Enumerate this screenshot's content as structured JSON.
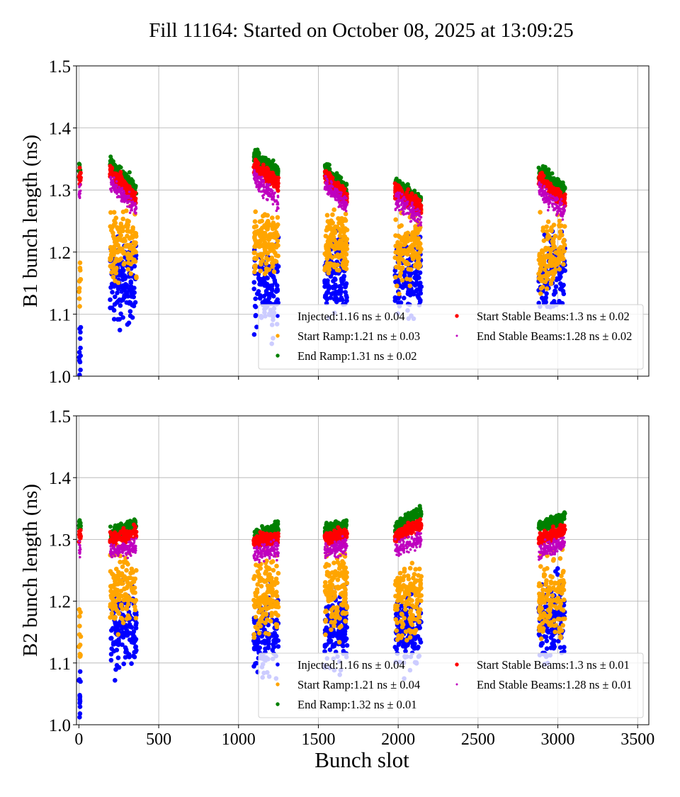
{
  "chart_data": [
    {
      "type": "scatter",
      "title": "Fill 11164: Started on October 08, 2025 at 13:09:25",
      "ylabel": "B1 bunch length (ns)",
      "xlabel": "",
      "xlim": [
        -15,
        3570
      ],
      "ylim": [
        1.0,
        1.5
      ],
      "xticks": [
        0,
        500,
        1000,
        1500,
        2000,
        2500,
        3000,
        3500
      ],
      "yticks": [
        "1.0",
        "1.1",
        "1.2",
        "1.3",
        "1.4",
        "1.5"
      ],
      "grid": true,
      "legend_placement": "lower-right",
      "trains": [
        [
          0,
          12
        ],
        [
          195,
          360
        ],
        [
          1095,
          1250
        ],
        [
          1540,
          1680
        ],
        [
          1980,
          2145
        ],
        [
          2880,
          3045
        ]
      ],
      "series": [
        {
          "name": "Injected:1.16 ns ± 0.04",
          "color": "#0000ff",
          "spread": 0.03,
          "train_y": [
            [
              1.04,
              1.04
            ],
            [
              1.15,
              1.15
            ],
            [
              1.14,
              1.15
            ],
            [
              1.16,
              1.17
            ],
            [
              1.15,
              1.16
            ],
            [
              1.16,
              1.17
            ]
          ]
        },
        {
          "name": "Start Ramp:1.21 ns ± 0.03",
          "color": "#ffa500",
          "spread": 0.025,
          "train_y": [
            [
              1.16,
              1.16
            ],
            [
              1.21,
              1.22
            ],
            [
              1.21,
              1.22
            ],
            [
              1.21,
              1.22
            ],
            [
              1.2,
              1.21
            ],
            [
              1.19,
              1.21
            ]
          ]
        },
        {
          "name": "End Ramp:1.31 ns ± 0.02",
          "color": "#008000",
          "spread": 0.006,
          "train_y": [
            [
              1.335,
              1.335
            ],
            [
              1.34,
              1.3
            ],
            [
              1.355,
              1.33
            ],
            [
              1.335,
              1.3
            ],
            [
              1.31,
              1.28
            ],
            [
              1.33,
              1.3
            ]
          ]
        },
        {
          "name": "Start Stable Beams:1.3 ns ± 0.02",
          "color": "#ff0000",
          "spread": 0.006,
          "train_y": [
            [
              1.32,
              1.32
            ],
            [
              1.33,
              1.285
            ],
            [
              1.34,
              1.31
            ],
            [
              1.325,
              1.285
            ],
            [
              1.3,
              1.27
            ],
            [
              1.32,
              1.28
            ]
          ]
        },
        {
          "name": "End Stable Beams:1.28 ns ± 0.02",
          "color": "#bf00bf",
          "spread": 0.007,
          "train_y": [
            [
              1.3,
              1.3
            ],
            [
              1.31,
              1.27
            ],
            [
              1.32,
              1.28
            ],
            [
              1.31,
              1.275
            ],
            [
              1.285,
              1.255
            ],
            [
              1.3,
              1.265
            ]
          ]
        }
      ]
    },
    {
      "type": "scatter",
      "title": "",
      "ylabel": "B2 bunch length (ns)",
      "xlabel": "Bunch slot",
      "xlim": [
        -15,
        3570
      ],
      "ylim": [
        1.0,
        1.5
      ],
      "xticks": [
        0,
        500,
        1000,
        1500,
        2000,
        2500,
        3000,
        3500
      ],
      "yticks": [
        "1.0",
        "1.1",
        "1.2",
        "1.3",
        "1.4",
        "1.5"
      ],
      "grid": true,
      "legend_placement": "lower-right",
      "trains": [
        [
          0,
          12
        ],
        [
          195,
          360
        ],
        [
          1095,
          1250
        ],
        [
          1540,
          1680
        ],
        [
          1980,
          2145
        ],
        [
          2880,
          3045
        ]
      ],
      "series": [
        {
          "name": "Injected:1.16 ns ± 0.04",
          "color": "#0000ff",
          "spread": 0.03,
          "train_y": [
            [
              1.04,
              1.04
            ],
            [
              1.15,
              1.15
            ],
            [
              1.14,
              1.15
            ],
            [
              1.15,
              1.16
            ],
            [
              1.15,
              1.16
            ],
            [
              1.16,
              1.17
            ]
          ]
        },
        {
          "name": "Start Ramp:1.21 ns ± 0.04",
          "color": "#ffa500",
          "spread": 0.03,
          "train_y": [
            [
              1.16,
              1.16
            ],
            [
              1.22,
              1.22
            ],
            [
              1.21,
              1.21
            ],
            [
              1.21,
              1.22
            ],
            [
              1.2,
              1.21
            ],
            [
              1.19,
              1.21
            ]
          ]
        },
        {
          "name": "End Ramp:1.32 ns ± 0.01",
          "color": "#008000",
          "spread": 0.005,
          "train_y": [
            [
              1.325,
              1.325
            ],
            [
              1.31,
              1.325
            ],
            [
              1.305,
              1.32
            ],
            [
              1.315,
              1.325
            ],
            [
              1.32,
              1.345
            ],
            [
              1.32,
              1.335
            ]
          ]
        },
        {
          "name": "Start Stable Beams:1.3 ns ± 0.01",
          "color": "#ff0000",
          "spread": 0.005,
          "train_y": [
            [
              1.305,
              1.305
            ],
            [
              1.3,
              1.31
            ],
            [
              1.295,
              1.305
            ],
            [
              1.3,
              1.31
            ],
            [
              1.305,
              1.325
            ],
            [
              1.3,
              1.315
            ]
          ]
        },
        {
          "name": "End Stable Beams:1.28 ns ± 0.01",
          "color": "#bf00bf",
          "spread": 0.006,
          "train_y": [
            [
              1.285,
              1.285
            ],
            [
              1.28,
              1.29
            ],
            [
              1.275,
              1.285
            ],
            [
              1.28,
              1.29
            ],
            [
              1.285,
              1.3
            ],
            [
              1.28,
              1.295
            ]
          ]
        }
      ]
    }
  ]
}
